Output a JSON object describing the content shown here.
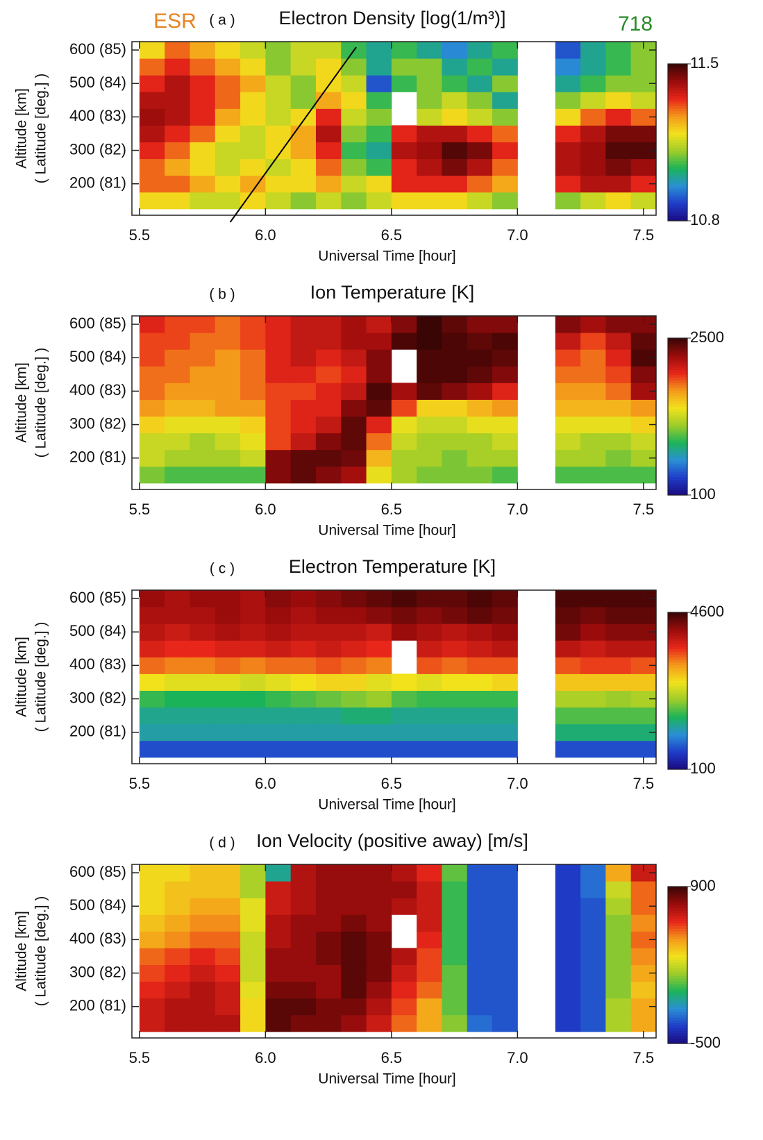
{
  "chart_data": [
    {
      "type": "heatmap",
      "tag_left": "ESR",
      "tag_right": "718",
      "label": "( a )",
      "title": "Electron Density [log(1/m³)]",
      "xlabel": "Universal Time [hour]",
      "ylabel": [
        "Altitude [km]",
        "( Latitude [deg.] )"
      ],
      "xlim": [
        5.47,
        7.55
      ],
      "ylim": [
        106,
        625
      ],
      "xticks": [
        5.5,
        {
          "value": 6,
          "label": "6.0"
        },
        6.5,
        {
          "value": 7,
          "label": "7.0"
        },
        7.5
      ],
      "yticks": [
        {
          "value": 200,
          "label": "200 (81)"
        },
        {
          "value": 300,
          "label": "300 (82)"
        },
        {
          "value": 400,
          "label": "400 (83)"
        },
        {
          "value": 500,
          "label": "500 (84)"
        },
        {
          "value": 600,
          "label": "600 (85)"
        }
      ],
      "clim": [
        10.8,
        11.5
      ],
      "cticks": [
        10.8,
        11.5
      ],
      "colormap": [
        "#1a0a80",
        "#1f3cc8",
        "#2a8fd6",
        "#1bb35a",
        "#9ccc2a",
        "#f2e21c",
        "#f49a1a",
        "#e8261a",
        "#9a0c0c",
        "#3a0505"
      ],
      "line": {
        "x": [
          5.86,
          6.36
        ],
        "y": [
          106,
          625
        ]
      },
      "x": [
        5.55,
        5.65,
        5.75,
        5.85,
        5.95,
        6.05,
        6.15,
        6.25,
        6.35,
        6.45,
        6.55,
        6.65,
        6.75,
        6.85,
        6.95,
        7.2,
        7.3,
        7.4,
        7.5
      ],
      "y": [
        150,
        200,
        250,
        300,
        350,
        400,
        450,
        500,
        550,
        600
      ],
      "z": [
        [
          11.2,
          11.2,
          11.15,
          11.15,
          11.2,
          11.15,
          11.1,
          11.15,
          11.1,
          11.15,
          11.2,
          11.2,
          11.2,
          11.15,
          11.1,
          11.1,
          11.15,
          11.2,
          11.15
        ],
        [
          11.3,
          11.3,
          11.25,
          11.2,
          11.25,
          11.2,
          11.2,
          11.25,
          11.15,
          11.2,
          11.35,
          11.35,
          11.35,
          11.3,
          11.25,
          11.35,
          11.4,
          11.4,
          11.35
        ],
        [
          11.3,
          11.25,
          11.2,
          11.15,
          11.2,
          11.15,
          11.2,
          11.3,
          11.1,
          11.05,
          11.35,
          11.4,
          11.45,
          11.4,
          11.3,
          11.4,
          11.42,
          11.45,
          11.42
        ],
        [
          11.35,
          11.3,
          11.2,
          11.15,
          11.15,
          11.2,
          11.25,
          11.35,
          11.05,
          11.0,
          11.4,
          11.42,
          11.48,
          11.45,
          11.35,
          11.4,
          11.42,
          11.48,
          11.48
        ],
        [
          11.4,
          11.35,
          11.3,
          11.2,
          11.15,
          11.2,
          11.25,
          11.4,
          11.1,
          11.05,
          11.35,
          11.4,
          11.4,
          11.35,
          11.3,
          11.35,
          11.4,
          11.45,
          11.45
        ],
        [
          11.42,
          11.4,
          11.35,
          11.25,
          11.2,
          11.15,
          11.2,
          11.35,
          11.15,
          11.1,
          null,
          11.15,
          11.2,
          11.15,
          11.1,
          11.2,
          11.3,
          11.35,
          11.3
        ],
        [
          11.4,
          11.4,
          11.35,
          11.3,
          11.2,
          11.15,
          11.1,
          11.25,
          11.2,
          11.05,
          null,
          11.1,
          11.15,
          11.1,
          11.0,
          11.1,
          11.15,
          11.2,
          11.15
        ],
        [
          11.35,
          11.4,
          11.35,
          11.3,
          11.25,
          11.15,
          11.1,
          11.2,
          11.15,
          10.9,
          11.05,
          11.1,
          11.05,
          11.0,
          11.1,
          11.0,
          11.05,
          11.1,
          11.1
        ],
        [
          11.3,
          11.35,
          11.3,
          11.25,
          11.2,
          11.1,
          11.15,
          11.2,
          11.1,
          11.0,
          11.1,
          11.1,
          11.0,
          11.05,
          11.0,
          10.95,
          11.0,
          11.05,
          11.1
        ],
        [
          11.2,
          11.3,
          11.25,
          11.2,
          11.15,
          11.1,
          11.15,
          11.15,
          11.05,
          11.0,
          11.05,
          11.0,
          10.95,
          11.0,
          11.05,
          10.9,
          11.0,
          11.05,
          11.1
        ]
      ]
    },
    {
      "type": "heatmap",
      "label": "( b )",
      "title": "Ion Temperature [K]",
      "xlabel": "Universal Time [hour]",
      "ylabel": [
        "Altitude [km]",
        "( Latitude [deg.] )"
      ],
      "xlim": [
        5.47,
        7.55
      ],
      "ylim": [
        106,
        625
      ],
      "xticks": [
        5.5,
        {
          "value": 6,
          "label": "6.0"
        },
        6.5,
        {
          "value": 7,
          "label": "7.0"
        },
        7.5
      ],
      "yticks": [
        {
          "value": 200,
          "label": "200 (81)"
        },
        {
          "value": 300,
          "label": "300 (82)"
        },
        {
          "value": 400,
          "label": "400 (83)"
        },
        {
          "value": 500,
          "label": "500 (84)"
        },
        {
          "value": 600,
          "label": "600 (85)"
        }
      ],
      "clim": [
        100,
        2500
      ],
      "cticks": [
        100,
        2500
      ],
      "colormap": [
        "#1a0a80",
        "#1f3cc8",
        "#2a8fd6",
        "#1bb35a",
        "#9ccc2a",
        "#f2e21c",
        "#f49a1a",
        "#e8261a",
        "#9a0c0c",
        "#3a0505"
      ],
      "x": [
        5.55,
        5.65,
        5.75,
        5.85,
        5.95,
        6.05,
        6.15,
        6.25,
        6.35,
        6.45,
        6.55,
        6.65,
        6.75,
        6.85,
        6.95,
        7.2,
        7.3,
        7.4,
        7.5
      ],
      "y": [
        150,
        200,
        250,
        300,
        350,
        400,
        450,
        500,
        550,
        600
      ],
      "z": [
        [
          1100,
          1000,
          1000,
          1000,
          1000,
          2300,
          2400,
          2300,
          2200,
          1400,
          1200,
          1100,
          1100,
          1100,
          1000,
          1000,
          1000,
          1000,
          1000
        ],
        [
          1300,
          1200,
          1200,
          1200,
          1300,
          2300,
          2400,
          2400,
          2350,
          1600,
          1200,
          1200,
          1100,
          1200,
          1200,
          1200,
          1200,
          1100,
          1200
        ],
        [
          1300,
          1300,
          1200,
          1300,
          1400,
          1900,
          2100,
          2300,
          2400,
          1800,
          1300,
          1200,
          1200,
          1200,
          1300,
          1300,
          1200,
          1200,
          1300
        ],
        [
          1500,
          1400,
          1400,
          1400,
          1500,
          1900,
          2000,
          2100,
          2400,
          2000,
          1400,
          1300,
          1300,
          1400,
          1400,
          1400,
          1400,
          1400,
          1500
        ],
        [
          1700,
          1600,
          1600,
          1700,
          1700,
          1900,
          2000,
          2000,
          2300,
          2400,
          1900,
          1500,
          1500,
          1600,
          1700,
          1600,
          1600,
          1600,
          1700
        ],
        [
          1800,
          1700,
          1700,
          1700,
          1800,
          1900,
          1900,
          2000,
          2100,
          2450,
          2200,
          2400,
          2300,
          2200,
          2000,
          1700,
          1700,
          1800,
          2200
        ],
        [
          1800,
          1800,
          1700,
          1700,
          1800,
          2000,
          2000,
          1900,
          2000,
          2300,
          null,
          2450,
          2450,
          2400,
          2300,
          1800,
          1800,
          1900,
          2300
        ],
        [
          1900,
          1800,
          1800,
          1700,
          1800,
          2000,
          2100,
          2000,
          2100,
          2300,
          null,
          2450,
          2450,
          2450,
          2400,
          1900,
          1800,
          2000,
          2450
        ],
        [
          1900,
          1900,
          1800,
          1800,
          1900,
          2000,
          2100,
          2100,
          2200,
          2200,
          2450,
          2500,
          2450,
          2400,
          2450,
          2100,
          1900,
          2100,
          2400
        ],
        [
          2000,
          1900,
          1900,
          1800,
          1900,
          2000,
          2100,
          2100,
          2200,
          2100,
          2300,
          2500,
          2400,
          2300,
          2300,
          2300,
          2200,
          2300,
          2300
        ]
      ]
    },
    {
      "type": "heatmap",
      "label": "( c )",
      "title": "Electron Temperature [K]",
      "xlabel": "Universal Time [hour]",
      "ylabel": [
        "Altitude [km]",
        "( Latitude [deg.] )"
      ],
      "xlim": [
        5.47,
        7.55
      ],
      "ylim": [
        106,
        625
      ],
      "xticks": [
        5.5,
        {
          "value": 6,
          "label": "6.0"
        },
        6.5,
        {
          "value": 7,
          "label": "7.0"
        },
        7.5
      ],
      "yticks": [
        {
          "value": 200,
          "label": "200 (81)"
        },
        {
          "value": 300,
          "label": "300 (82)"
        },
        {
          "value": 400,
          "label": "400 (83)"
        },
        {
          "value": 500,
          "label": "500 (84)"
        },
        {
          "value": 600,
          "label": "600 (85)"
        }
      ],
      "clim": [
        100,
        4600
      ],
      "cticks": [
        100,
        4600
      ],
      "colormap": [
        "#1a0a80",
        "#1f3cc8",
        "#2a8fd6",
        "#1bb35a",
        "#9ccc2a",
        "#f2e21c",
        "#f49a1a",
        "#e8261a",
        "#9a0c0c",
        "#3a0505"
      ],
      "x": [
        5.55,
        5.65,
        5.75,
        5.85,
        5.95,
        6.05,
        6.15,
        6.25,
        6.35,
        6.45,
        6.55,
        6.65,
        6.75,
        6.85,
        6.95,
        7.2,
        7.3,
        7.4,
        7.5
      ],
      "y": [
        150,
        200,
        250,
        300,
        350,
        400,
        450,
        500,
        550,
        600
      ],
      "z": [
        [
          700,
          700,
          700,
          700,
          700,
          700,
          700,
          700,
          700,
          700,
          700,
          700,
          700,
          700,
          700,
          700,
          700,
          700,
          700
        ],
        [
          1300,
          1300,
          1300,
          1300,
          1300,
          1300,
          1300,
          1300,
          1300,
          1300,
          1300,
          1300,
          1300,
          1300,
          1300,
          1500,
          1500,
          1500,
          1500
        ],
        [
          1400,
          1400,
          1400,
          1400,
          1400,
          1400,
          1400,
          1400,
          1500,
          1500,
          1400,
          1400,
          1400,
          1400,
          1400,
          1800,
          1800,
          1800,
          1800
        ],
        [
          1700,
          1600,
          1600,
          1600,
          1600,
          1700,
          1800,
          1900,
          2000,
          2100,
          1800,
          1700,
          1700,
          1700,
          1700,
          2200,
          2200,
          2100,
          2200
        ],
        [
          2600,
          2500,
          2500,
          2500,
          2400,
          2500,
          2600,
          2700,
          2700,
          2500,
          2600,
          2500,
          2600,
          2600,
          2700,
          2800,
          2800,
          2800,
          2800
        ],
        [
          3300,
          3200,
          3200,
          3300,
          3200,
          3300,
          3300,
          3400,
          3300,
          3200,
          null,
          3400,
          3300,
          3400,
          3400,
          3400,
          3500,
          3500,
          3400
        ],
        [
          3700,
          3600,
          3600,
          3700,
          3700,
          3800,
          3700,
          3800,
          3700,
          3600,
          null,
          3800,
          3700,
          3800,
          3900,
          3900,
          3800,
          3900,
          3900
        ],
        [
          3900,
          3800,
          3900,
          4000,
          3900,
          4000,
          3900,
          3900,
          3900,
          3800,
          4100,
          4000,
          3900,
          4000,
          4100,
          4300,
          4100,
          4200,
          4200
        ],
        [
          4000,
          4000,
          4000,
          4100,
          4000,
          4100,
          4000,
          4100,
          4100,
          4200,
          4300,
          4200,
          4300,
          4400,
          4300,
          4400,
          4300,
          4400,
          4400
        ],
        [
          4100,
          4000,
          4100,
          4100,
          4000,
          4200,
          4100,
          4200,
          4300,
          4400,
          4500,
          4400,
          4400,
          4500,
          4400,
          4500,
          4500,
          4500,
          4500
        ]
      ]
    },
    {
      "type": "heatmap",
      "label": "( d )",
      "title": "Ion Velocity (positive away) [m/s]",
      "xlabel": "Universal Time [hour]",
      "ylabel": [
        "Altitude [km]",
        "( Latitude [deg.] )"
      ],
      "xlim": [
        5.47,
        7.55
      ],
      "ylim": [
        106,
        625
      ],
      "xticks": [
        5.5,
        {
          "value": 6,
          "label": "6.0"
        },
        6.5,
        {
          "value": 7,
          "label": "7.0"
        },
        7.5
      ],
      "yticks": [
        {
          "value": 200,
          "label": "200 (81)"
        },
        {
          "value": 300,
          "label": "300 (82)"
        },
        {
          "value": 400,
          "label": "400 (83)"
        },
        {
          "value": 500,
          "label": "500 (84)"
        },
        {
          "value": 600,
          "label": "600 (85)"
        }
      ],
      "clim": [
        -500,
        900
      ],
      "cticks": [
        -500,
        900
      ],
      "colormap": [
        "#1a0a80",
        "#1f3cc8",
        "#2a8fd6",
        "#1bb35a",
        "#9ccc2a",
        "#f2e21c",
        "#f49a1a",
        "#e8261a",
        "#9a0c0c",
        "#3a0505"
      ],
      "x": [
        5.55,
        5.65,
        5.75,
        5.85,
        5.95,
        6.05,
        6.15,
        6.25,
        6.35,
        6.45,
        6.55,
        6.65,
        6.75,
        6.85,
        6.95,
        7.2,
        7.3,
        7.4,
        7.5
      ],
      "y": [
        150,
        200,
        250,
        300,
        350,
        400,
        450,
        500,
        550,
        600
      ],
      "z": [
        [
          650,
          700,
          700,
          700,
          300,
          850,
          800,
          800,
          750,
          650,
          500,
          400,
          100,
          -250,
          -300,
          -350,
          -300,
          150,
          400
        ],
        [
          650,
          700,
          700,
          650,
          300,
          850,
          850,
          800,
          800,
          700,
          550,
          400,
          50,
          -300,
          -300,
          -350,
          -300,
          150,
          400
        ],
        [
          600,
          650,
          700,
          650,
          250,
          800,
          800,
          750,
          850,
          750,
          600,
          500,
          50,
          -300,
          -300,
          -350,
          -300,
          100,
          350
        ],
        [
          550,
          600,
          650,
          600,
          200,
          750,
          750,
          750,
          850,
          800,
          650,
          550,
          50,
          -300,
          -300,
          -350,
          -300,
          100,
          400
        ],
        [
          500,
          550,
          600,
          550,
          200,
          750,
          750,
          800,
          850,
          800,
          700,
          550,
          0,
          -300,
          -300,
          -350,
          -300,
          100,
          450
        ],
        [
          400,
          450,
          500,
          500,
          200,
          700,
          750,
          800,
          850,
          800,
          null,
          600,
          0,
          -300,
          -300,
          -350,
          -300,
          100,
          500
        ],
        [
          350,
          400,
          450,
          450,
          250,
          700,
          750,
          750,
          800,
          750,
          null,
          650,
          0,
          -300,
          -300,
          -350,
          -300,
          100,
          450
        ],
        [
          300,
          350,
          400,
          400,
          250,
          650,
          700,
          750,
          750,
          750,
          700,
          650,
          0,
          -300,
          -300,
          -350,
          -300,
          150,
          500
        ],
        [
          300,
          350,
          350,
          350,
          150,
          650,
          700,
          750,
          750,
          750,
          750,
          650,
          0,
          -300,
          -300,
          -350,
          -250,
          200,
          500
        ],
        [
          300,
          300,
          350,
          350,
          150,
          -100,
          700,
          750,
          750,
          750,
          700,
          600,
          50,
          -300,
          -300,
          -350,
          -250,
          400,
          650
        ]
      ]
    }
  ]
}
